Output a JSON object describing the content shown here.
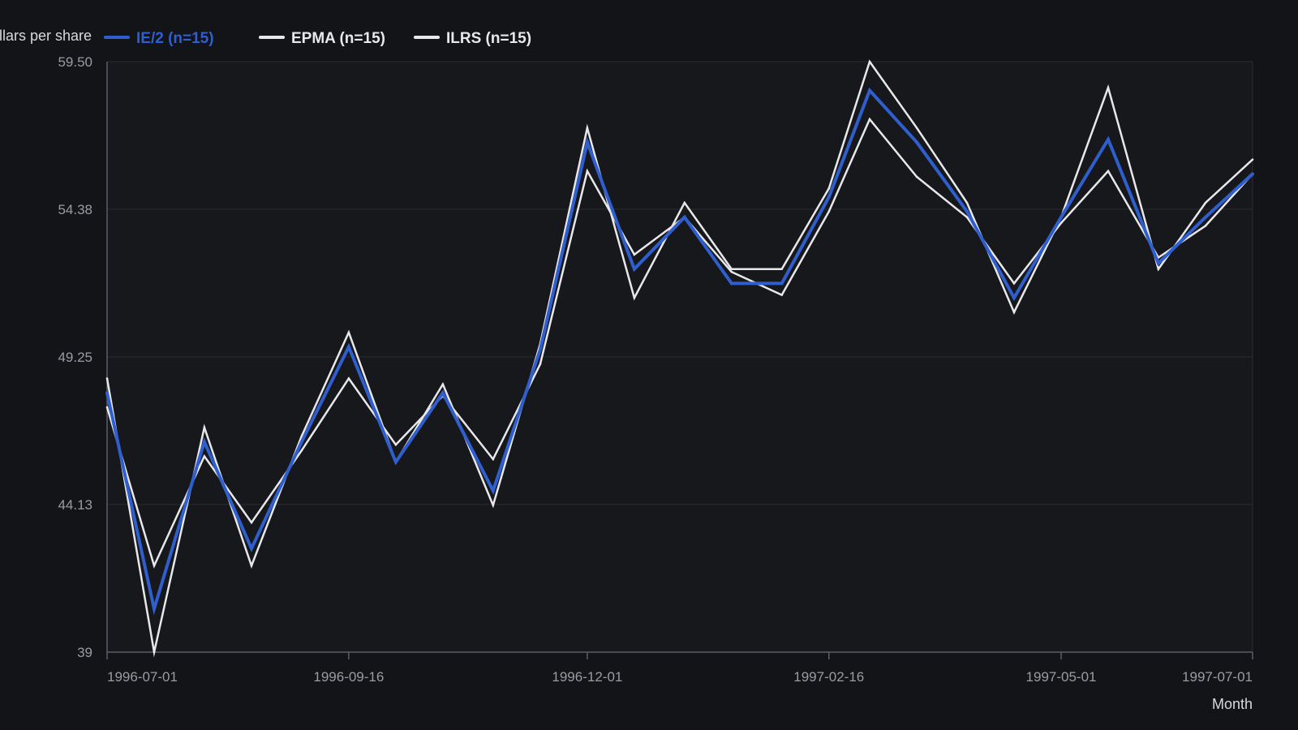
{
  "colors": {
    "background": "#131417",
    "grid": "#2a2c31",
    "axis": "#5b5e66",
    "ie2": "#2f5fcf",
    "epma": "#e8e8ea",
    "ilrs": "#e8e8ea"
  },
  "chart_data": {
    "type": "line",
    "title": "",
    "xlabel": "Month",
    "ylabel": "Dollars per share",
    "ylim": [
      39,
      59.5
    ],
    "yticks": [
      39,
      44.13,
      49.25,
      54.38,
      59.5
    ],
    "ytick_labels": [
      "39",
      "44.13",
      "49.25",
      "54.38",
      "59.50"
    ],
    "x_range": [
      "1996-07-01",
      "1997-07-01"
    ],
    "xticks": [
      "1996-07-01",
      "1996-09-16",
      "1996-12-01",
      "1997-02-16",
      "1997-05-01",
      "1997-07-01"
    ],
    "x": [
      "1996-07-01",
      "1996-07-16",
      "1996-08-01",
      "1996-08-16",
      "1996-09-01",
      "1996-09-16",
      "1996-10-01",
      "1996-10-16",
      "1996-11-01",
      "1996-11-16",
      "1996-12-01",
      "1996-12-16",
      "1997-01-01",
      "1997-01-16",
      "1997-02-01",
      "1997-02-16",
      "1997-03-01",
      "1997-03-16",
      "1997-04-01",
      "1997-04-16",
      "1997-05-01",
      "1997-05-16",
      "1997-06-01",
      "1997-06-16",
      "1997-07-01"
    ],
    "grid": true,
    "legend_position": "top-left",
    "series": [
      {
        "name": "IE/2 (n=15)",
        "color_key": "ie2",
        "values": [
          48.0,
          40.5,
          46.3,
          42.6,
          46.3,
          49.6,
          45.6,
          48.0,
          44.6,
          49.5,
          56.7,
          52.3,
          54.1,
          51.8,
          51.8,
          54.8,
          58.5,
          56.7,
          54.3,
          51.3,
          54.1,
          56.8,
          52.5,
          54.1,
          55.6
        ]
      },
      {
        "name": "EPMA (n=15)",
        "color_key": "epma",
        "values": [
          47.5,
          42.0,
          45.8,
          43.5,
          46.0,
          48.5,
          46.2,
          47.9,
          45.7,
          49.0,
          55.7,
          52.8,
          54.1,
          52.2,
          51.4,
          54.3,
          57.5,
          55.5,
          54.1,
          51.8,
          53.9,
          55.7,
          52.7,
          53.8,
          55.6
        ]
      },
      {
        "name": "ILRS (n=15)",
        "color_key": "ilrs",
        "values": [
          48.5,
          39.0,
          46.8,
          42.0,
          46.5,
          50.1,
          45.6,
          48.3,
          44.1,
          49.7,
          57.2,
          51.3,
          54.6,
          52.3,
          52.3,
          55.1,
          59.5,
          57.2,
          54.6,
          50.8,
          54.1,
          58.6,
          52.3,
          54.6,
          56.1
        ]
      }
    ]
  }
}
